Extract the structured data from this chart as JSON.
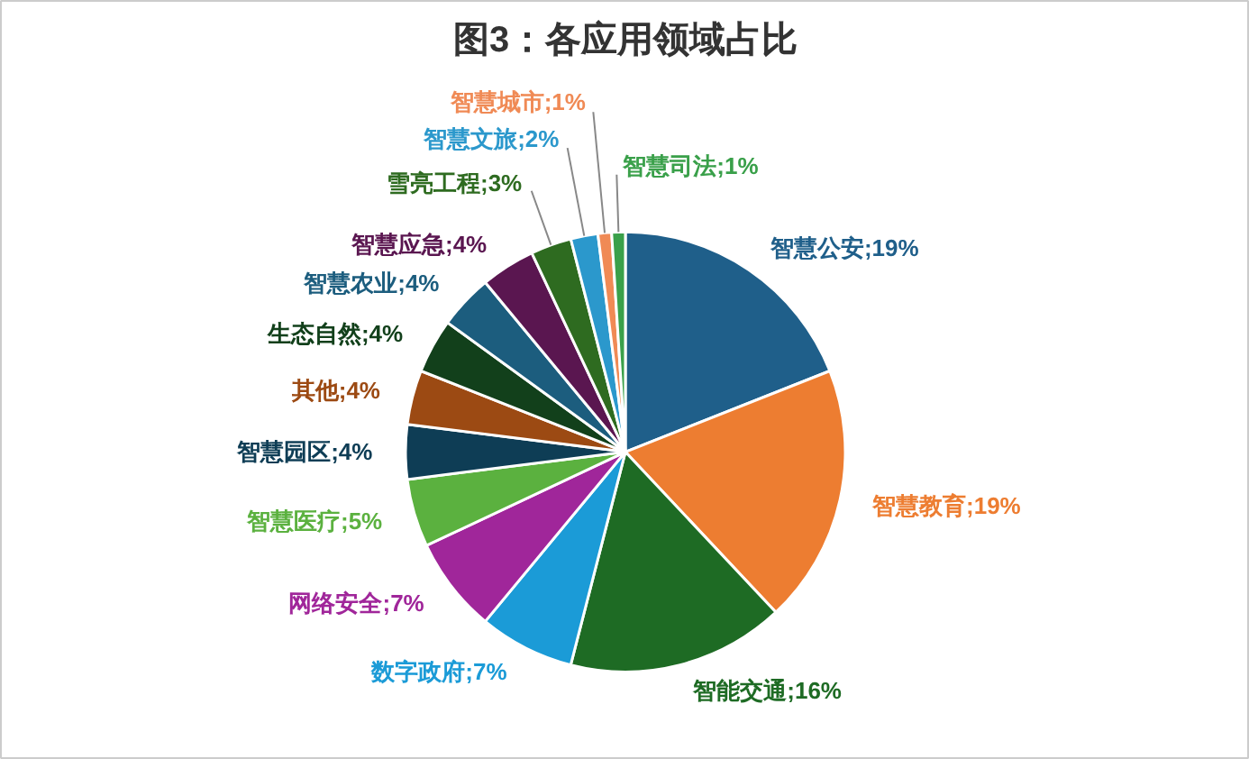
{
  "chart_data": {
    "type": "pie",
    "title": "图3：各应用领域占比",
    "categories": [
      "智慧公安",
      "智慧教育",
      "智能交通",
      "数字政府",
      "网络安全",
      "智慧医疗",
      "智慧园区",
      "其他",
      "生态自然",
      "智慧农业",
      "智慧应急",
      "雪亮工程",
      "智慧文旅",
      "智慧城市",
      "智慧司法"
    ],
    "values": [
      19,
      19,
      16,
      7,
      7,
      5,
      4,
      4,
      4,
      4,
      4,
      3,
      2,
      1,
      1
    ],
    "value_labels": [
      "19%",
      "19%",
      "16%",
      "7%",
      "7%",
      "5%",
      "4%",
      "4%",
      "4%",
      "4%",
      "4%",
      "3%",
      "2%",
      "1%",
      "1%"
    ],
    "colors": [
      "#1f5f8a",
      "#ed7d31",
      "#1e6b24",
      "#1b9bd7",
      "#a0269a",
      "#5bb13f",
      "#0e3d55",
      "#9c4a13",
      "#12401b",
      "#1c5d7e",
      "#5a1650",
      "#2e6b20",
      "#2b98cc",
      "#f08a55",
      "#3aa04a"
    ]
  }
}
